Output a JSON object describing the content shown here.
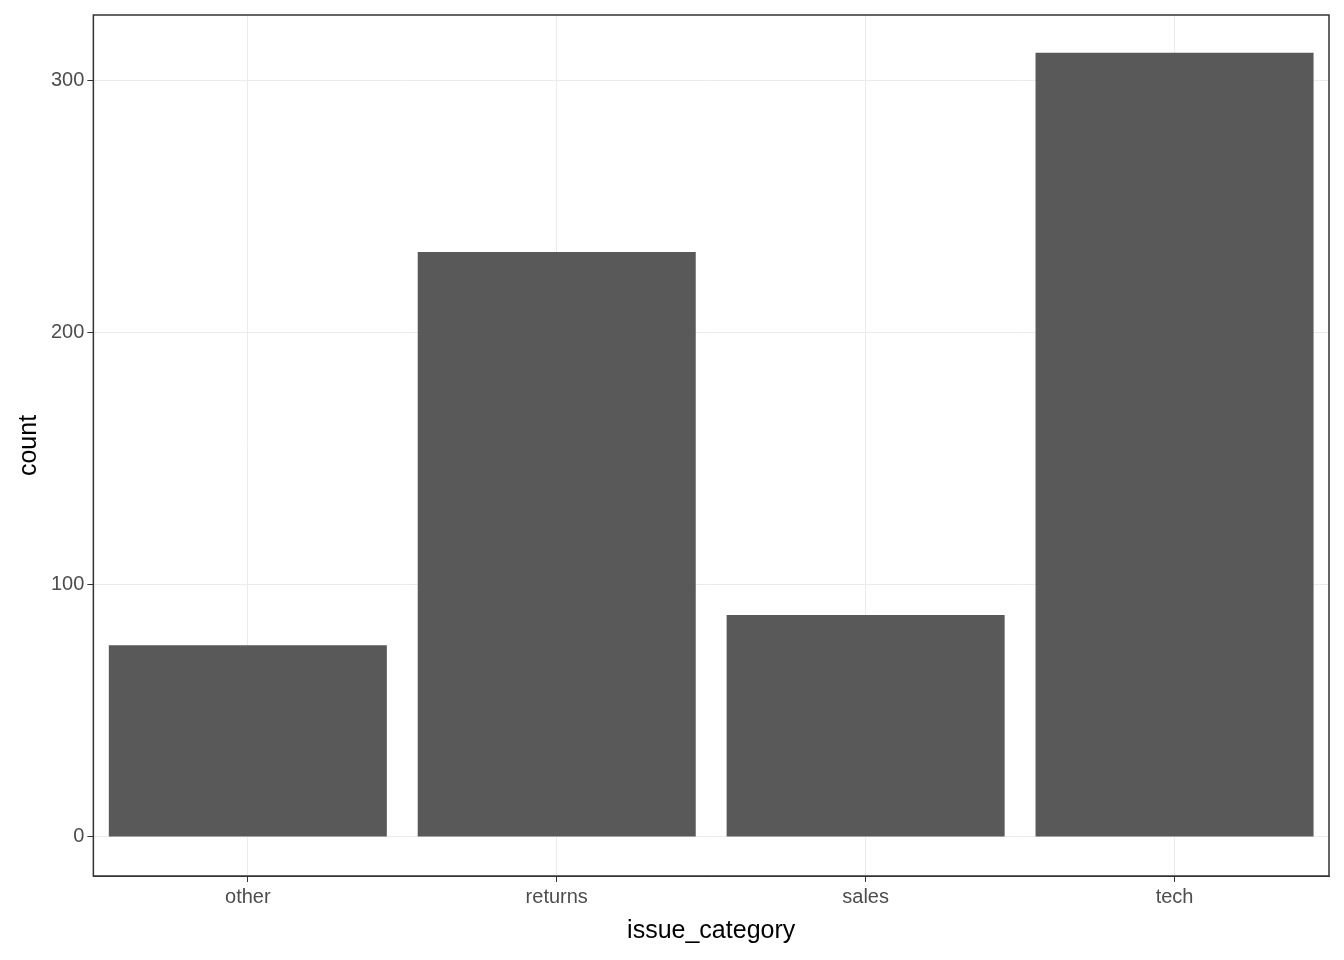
{
  "chart_data": {
    "type": "bar",
    "x_label": "issue_category",
    "y_label": "count",
    "categories": [
      "other",
      "returns",
      "sales",
      "tech"
    ],
    "values": [
      76,
      232,
      88,
      311
    ],
    "color": "#595959",
    "ylim": [
      -15.5,
      326
    ],
    "yticks": [
      0,
      100,
      200,
      300
    ],
    "grid": true
  }
}
